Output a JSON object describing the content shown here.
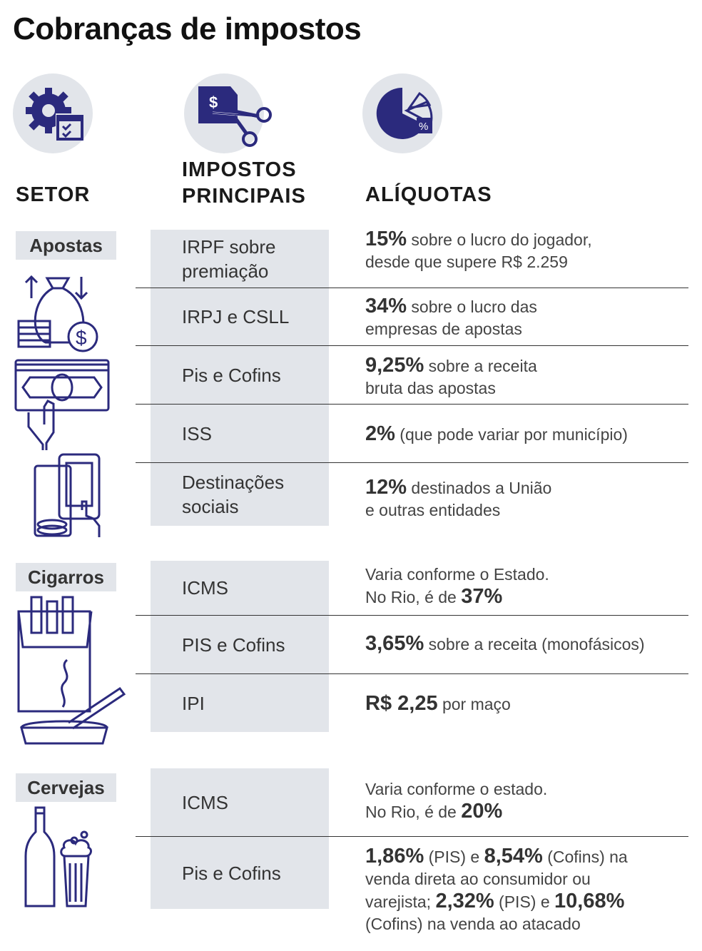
{
  "title": "Cobranças de impostos",
  "headers": {
    "setor": "SETOR",
    "impostos_line1": "IMPOSTOS",
    "impostos_line2": "PRINCIPAIS",
    "aliquotas": "ALÍQUOTAS"
  },
  "icons": {
    "setor": "gear-checklist-icon",
    "impostos": "cutting-dollar-bill-icon",
    "aliquotas": "pie-chart-percent-icon"
  },
  "colors": {
    "navy": "#2b2a7d",
    "gray_bg": "#e2e5ea",
    "text": "#333333"
  },
  "sectors": [
    {
      "name": "Apostas",
      "rows": [
        {
          "tax": [
            "IRPF sobre",
            "premiação"
          ],
          "rate_bold": "15%",
          "rate_text": " sobre o lucro do jogador,",
          "rate_line2": "desde que supere R$ 2.259"
        },
        {
          "tax": [
            "IRPJ e CSLL"
          ],
          "rate_bold": "34%",
          "rate_text": " sobre o lucro das",
          "rate_line2": "empresas de apostas"
        },
        {
          "tax": [
            "Pis e Cofins"
          ],
          "rate_bold": "9,25%",
          "rate_text": " sobre a receita",
          "rate_line2": "bruta das apostas"
        },
        {
          "tax": [
            "ISS"
          ],
          "rate_bold": "2%",
          "rate_text": " (que pode variar por município)",
          "rate_line2": ""
        },
        {
          "tax": [
            "Destinações",
            "sociais"
          ],
          "rate_bold": "12%",
          "rate_text": " destinados a União",
          "rate_line2": "e outras entidades"
        }
      ]
    },
    {
      "name": "Cigarros",
      "rows": [
        {
          "tax": [
            "ICMS"
          ],
          "rate_line1": "Varia conforme o Estado.",
          "rate_prefix2": "No Rio, é de ",
          "rate_bold": "37%"
        },
        {
          "tax": [
            "PIS e Cofins"
          ],
          "rate_bold": "3,65%",
          "rate_text": " sobre a receita (monofásicos)"
        },
        {
          "tax": [
            "IPI"
          ],
          "rate_bold": "R$ 2,25",
          "rate_text": " por maço"
        }
      ]
    },
    {
      "name": "Cervejas",
      "rows": [
        {
          "tax": [
            "ICMS"
          ],
          "rate_line1": "Varia conforme o estado.",
          "rate_prefix2": "No Rio, é de ",
          "rate_bold": "20%"
        },
        {
          "tax": [
            "Pis e Cofins"
          ],
          "b1": "1,86%",
          "t1": " (PIS) e ",
          "b2": "8,54%",
          "t2": " (Cofins) na",
          "l2": "venda direta ao consumidor ou",
          "t3": "varejista; ",
          "b3": "2,32%",
          "t4": " (PIS) e ",
          "b4": "10,68%",
          "l4": "(Cofins) na venda ao atacado"
        }
      ]
    }
  ]
}
